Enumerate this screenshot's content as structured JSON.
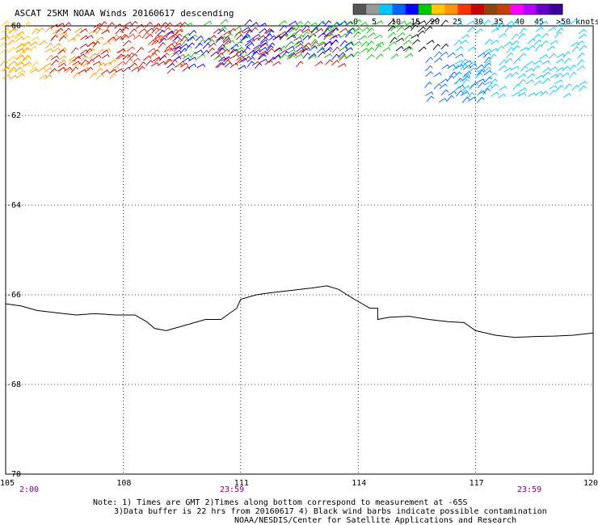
{
  "title": "ASCAT 25KM NOAA Winds 20160617 descending",
  "legend": {
    "colors": [
      "#555555",
      "#999999",
      "#00c8ff",
      "#0064ff",
      "#0000ff",
      "#00c800",
      "#ffc800",
      "#ff9600",
      "#ff3200",
      "#c80000",
      "#8b4513",
      "#c04000",
      "#ff00ff",
      "#b400ff",
      "#6400c8",
      "#3c0096"
    ],
    "tick_labels": [
      "0",
      "5",
      "10",
      "15",
      "20",
      "25",
      "30",
      "35",
      "40",
      "45",
      ">50 knots"
    ]
  },
  "axes": {
    "x_ticks": [
      "105",
      "108",
      "111",
      "114",
      "117",
      "120"
    ],
    "y_ticks": [
      "-60",
      "-62",
      "-64",
      "-66",
      "-68",
      "-70"
    ],
    "x_range": [
      105,
      120
    ],
    "y_range": [
      -60,
      -70
    ],
    "grid": "dotted"
  },
  "time_labels": [
    "2:00",
    "23:59",
    "23:59"
  ],
  "notes": [
    "Note: 1) Times are GMT 2)Times along bottom correspond to measurement at -65S",
    "3)Data buffer is 22 hrs from 20160617 4) Black wind barbs indicate possible contamination",
    "NOAA/NESDIS/Center for Satellite Applications and Research"
  ],
  "coastline": {
    "lon": [
      105.0,
      105.4,
      105.8,
      106.3,
      106.8,
      107.3,
      107.8,
      108.3,
      108.6,
      108.8,
      109.1,
      109.5,
      109.7,
      110.1,
      110.5,
      110.9,
      111.0,
      111.4,
      111.8,
      112.3,
      112.8,
      113.2,
      113.5,
      113.9,
      114.3,
      114.5,
      114.5,
      114.8,
      115.3,
      115.8,
      116.3,
      116.7,
      117.0,
      117.5,
      118.0,
      118.5,
      119.0,
      119.5,
      120.0
    ],
    "lat": [
      -66.2,
      -66.25,
      -66.35,
      -66.4,
      -66.45,
      -66.42,
      -66.45,
      -66.45,
      -66.6,
      -66.75,
      -66.8,
      -66.7,
      -66.65,
      -66.55,
      -66.55,
      -66.3,
      -66.1,
      -66.0,
      -65.95,
      -65.9,
      -65.85,
      -65.8,
      -65.88,
      -66.1,
      -66.3,
      -66.3,
      -66.55,
      -66.5,
      -66.48,
      -66.55,
      -66.6,
      -66.62,
      -66.8,
      -66.9,
      -66.95,
      -66.93,
      -66.92,
      -66.9,
      -66.85
    ]
  },
  "wind_regions": [
    {
      "color": "#ffc800",
      "x_range": [
        0,
        40
      ],
      "y_range": [
        32,
        95
      ]
    },
    {
      "color": "#ff9600",
      "x_range": [
        0,
        140
      ],
      "y_range": [
        40,
        102
      ]
    },
    {
      "color": "#c80000",
      "x_range": [
        60,
        225
      ],
      "y_range": [
        32,
        95
      ]
    },
    {
      "color": "#ff3200",
      "x_range": [
        145,
        225
      ],
      "y_range": [
        38,
        82
      ]
    },
    {
      "color": "#00c800",
      "x_range": [
        225,
        300
      ],
      "y_range": [
        30,
        70
      ]
    },
    {
      "color": "#0000ff",
      "x_range": [
        195,
        330
      ],
      "y_range": [
        42,
        85
      ]
    },
    {
      "color": "#c80000",
      "x_range": [
        255,
        425
      ],
      "y_range": [
        40,
        85
      ]
    },
    {
      "color": "#0000ff",
      "x_range": [
        300,
        430
      ],
      "y_range": [
        30,
        75
      ]
    },
    {
      "color": "#00c800",
      "x_range": [
        345,
        500
      ],
      "y_range": [
        30,
        72
      ]
    },
    {
      "color": "#000000",
      "x_range": [
        480,
        545
      ],
      "y_range": [
        28,
        60
      ]
    },
    {
      "color": "#0064ff",
      "x_range": [
        525,
        600
      ],
      "y_range": [
        68,
        125
      ]
    },
    {
      "color": "#00c8ff",
      "x_range": [
        560,
        720
      ],
      "y_range": [
        30,
        120
      ]
    }
  ]
}
